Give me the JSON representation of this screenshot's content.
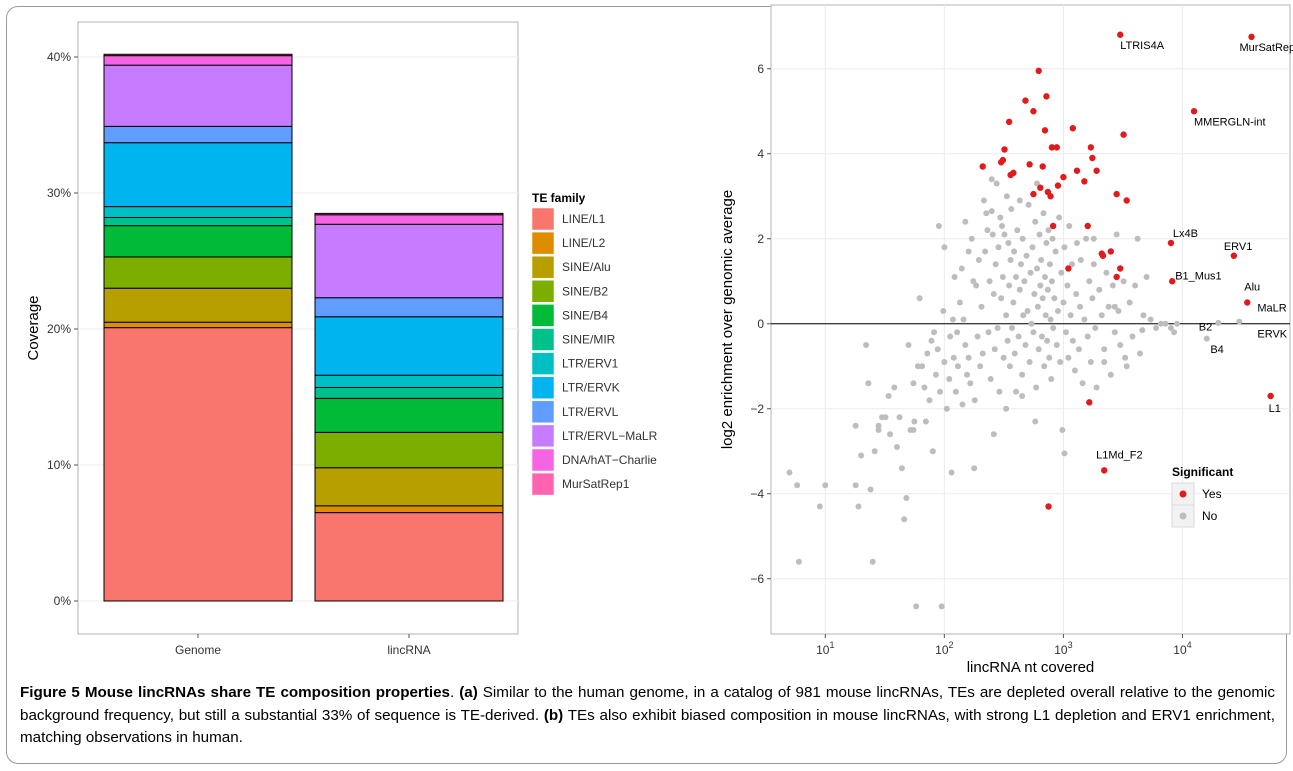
{
  "chart_data": [
    {
      "panel": "a",
      "type": "bar",
      "stacked": true,
      "ylabel": "Coverage",
      "yticks": [
        "0%",
        "10%",
        "20%",
        "30%",
        "40%"
      ],
      "ylim": [
        0,
        42
      ],
      "grid": true,
      "categories": [
        "Genome",
        "lincRNA"
      ],
      "legend_title": "TE family",
      "legend_position": "right",
      "series": [
        {
          "name": "LINE/L1",
          "color": "#F8766D",
          "values": [
            20.1,
            6.5
          ]
        },
        {
          "name": "LINE/L2",
          "color": "#DE8C00",
          "values": [
            0.4,
            0.5
          ]
        },
        {
          "name": "SINE/Alu",
          "color": "#B79F00",
          "values": [
            2.5,
            2.8
          ]
        },
        {
          "name": "SINE/B2",
          "color": "#7CAE00",
          "values": [
            2.3,
            2.6
          ]
        },
        {
          "name": "SINE/B4",
          "color": "#00BA38",
          "values": [
            2.3,
            2.5
          ]
        },
        {
          "name": "SINE/MIR",
          "color": "#00C08B",
          "values": [
            0.6,
            0.8
          ]
        },
        {
          "name": "LTR/ERV1",
          "color": "#00BFC4",
          "values": [
            0.8,
            0.9
          ]
        },
        {
          "name": "LTR/ERVK",
          "color": "#00B4F0",
          "values": [
            4.7,
            4.3
          ]
        },
        {
          "name": "LTR/ERVL",
          "color": "#619CFF",
          "values": [
            1.2,
            1.4
          ]
        },
        {
          "name": "LTR/ERVL−MaLR",
          "color": "#C77CFF",
          "values": [
            4.5,
            5.4
          ]
        },
        {
          "name": "DNA/hAT−Charlie",
          "color": "#F564E3",
          "values": [
            0.7,
            0.7
          ]
        },
        {
          "name": "MurSatRep1",
          "color": "#FF64B0",
          "values": [
            0.1,
            0.1
          ]
        }
      ]
    },
    {
      "panel": "b",
      "type": "scatter",
      "xlabel": "lincRNA nt covered",
      "ylabel": "log2 enrichment over genomic average",
      "xscale": "log10",
      "xlim": [
        3.5,
        80000
      ],
      "ylim": [
        -7.3,
        7.5
      ],
      "xticks": [
        {
          "base": "10",
          "exp": "1"
        },
        {
          "base": "10",
          "exp": "2"
        },
        {
          "base": "10",
          "exp": "3"
        },
        {
          "base": "10",
          "exp": "4"
        }
      ],
      "yticks": [
        "−6",
        "−4",
        "−2",
        "0",
        "2",
        "4",
        "6"
      ],
      "hline": 0,
      "grid": true,
      "legend_title": "Significant",
      "legend_position": "bottom-right",
      "legend": [
        {
          "label": "Yes",
          "color": "#e31a1c"
        },
        {
          "label": "No",
          "color": "#bdbdbd"
        }
      ],
      "significant": [
        [
          3000,
          6.8
        ],
        [
          38000,
          6.75
        ],
        [
          12500,
          5.0
        ],
        [
          8000,
          1.9
        ],
        [
          27000,
          1.6
        ],
        [
          8200,
          1.0
        ],
        [
          35000,
          0.5
        ],
        [
          55000,
          -1.7
        ],
        [
          2200,
          -3.45
        ],
        [
          750,
          -4.3
        ],
        [
          1650,
          -1.85
        ],
        [
          210,
          3.7
        ],
        [
          300,
          3.8
        ],
        [
          310,
          3.85
        ],
        [
          320,
          4.1
        ],
        [
          360,
          3.5
        ],
        [
          380,
          3.55
        ],
        [
          350,
          4.75
        ],
        [
          480,
          5.25
        ],
        [
          560,
          5.0
        ],
        [
          520,
          3.75
        ],
        [
          620,
          5.95
        ],
        [
          640,
          3.2
        ],
        [
          670,
          3.7
        ],
        [
          700,
          4.55
        ],
        [
          720,
          5.35
        ],
        [
          740,
          3.1
        ],
        [
          780,
          3.0
        ],
        [
          800,
          4.15
        ],
        [
          880,
          4.15
        ],
        [
          900,
          3.25
        ],
        [
          1000,
          3.45
        ],
        [
          1200,
          4.6
        ],
        [
          1300,
          3.6
        ],
        [
          1500,
          3.35
        ],
        [
          1700,
          4.15
        ],
        [
          1750,
          3.9
        ],
        [
          1900,
          3.6
        ],
        [
          2100,
          1.65
        ],
        [
          2150,
          1.6
        ],
        [
          2500,
          1.7
        ],
        [
          2800,
          3.05
        ],
        [
          3000,
          1.3
        ],
        [
          3200,
          4.45
        ],
        [
          3400,
          2.9
        ],
        [
          2800,
          1.1
        ],
        [
          1600,
          2.3
        ],
        [
          820,
          2.3
        ],
        [
          1100,
          1.3
        ],
        [
          560,
          3.05
        ]
      ],
      "nonsignificant": [
        [
          5,
          -3.5
        ],
        [
          5.8,
          -3.8
        ],
        [
          6,
          -5.6
        ],
        [
          9,
          -4.3
        ],
        [
          10,
          -3.8
        ],
        [
          18,
          -2.4
        ],
        [
          18,
          -3.8
        ],
        [
          19,
          -4.3
        ],
        [
          20,
          -3.1
        ],
        [
          22,
          -0.5
        ],
        [
          23,
          -1.4
        ],
        [
          24,
          -3.9
        ],
        [
          25,
          -5.6
        ],
        [
          26,
          -3.0
        ],
        [
          28,
          -2.5
        ],
        [
          28,
          -2.4
        ],
        [
          30,
          -2.2
        ],
        [
          32,
          -2.2
        ],
        [
          34,
          -1.7
        ],
        [
          35,
          -2.6
        ],
        [
          38,
          -1.5
        ],
        [
          40,
          -2.9
        ],
        [
          42,
          -2.2
        ],
        [
          44,
          -3.4
        ],
        [
          46,
          -4.6
        ],
        [
          48,
          -4.1
        ],
        [
          50,
          -0.5
        ],
        [
          52,
          -2.5
        ],
        [
          55,
          -1.4
        ],
        [
          55,
          -2.5
        ],
        [
          56,
          -2.3
        ],
        [
          58,
          -6.65
        ],
        [
          60,
          -1.0
        ],
        [
          62,
          0.6
        ],
        [
          65,
          -1.0
        ],
        [
          68,
          -1.5
        ],
        [
          70,
          -2.3
        ],
        [
          72,
          -0.7
        ],
        [
          75,
          -1.8
        ],
        [
          78,
          -0.4
        ],
        [
          80,
          -3.0
        ],
        [
          82,
          -0.2
        ],
        [
          85,
          -1.2
        ],
        [
          88,
          -0.6
        ],
        [
          90,
          2.3
        ],
        [
          92,
          -1.6
        ],
        [
          95,
          -6.65
        ],
        [
          98,
          0.3
        ],
        [
          100,
          -0.9
        ],
        [
          100,
          1.8
        ],
        [
          105,
          -2.0
        ],
        [
          110,
          -1.3
        ],
        [
          112,
          -0.3
        ],
        [
          115,
          -3.5
        ],
        [
          118,
          0.1
        ],
        [
          120,
          -0.8
        ],
        [
          122,
          1.1
        ],
        [
          125,
          -1.6
        ],
        [
          128,
          -0.2
        ],
        [
          130,
          -1.0
        ],
        [
          135,
          0.5
        ],
        [
          140,
          1.3
        ],
        [
          142,
          -1.9
        ],
        [
          145,
          0.1
        ],
        [
          150,
          -0.5
        ],
        [
          150,
          2.4
        ],
        [
          155,
          -1.2
        ],
        [
          160,
          -0.8
        ],
        [
          160,
          1.7
        ],
        [
          165,
          -1.4
        ],
        [
          170,
          2.0
        ],
        [
          175,
          1.0
        ],
        [
          178,
          -3.4
        ],
        [
          180,
          -1.8
        ],
        [
          185,
          0.9
        ],
        [
          190,
          -0.3
        ],
        [
          195,
          1.5
        ],
        [
          200,
          -1.0
        ],
        [
          205,
          0.4
        ],
        [
          210,
          -0.7
        ],
        [
          215,
          2.9
        ],
        [
          220,
          1.7
        ],
        [
          225,
          2.6
        ],
        [
          230,
          2.2
        ],
        [
          235,
          -0.2
        ],
        [
          240,
          1.0
        ],
        [
          245,
          -1.3
        ],
        [
          250,
          3.4
        ],
        [
          255,
          2.1
        ],
        [
          260,
          0.7
        ],
        [
          265,
          -0.6
        ],
        [
          270,
          1.4
        ],
        [
          275,
          3.3
        ],
        [
          280,
          -0.1
        ],
        [
          285,
          1.8
        ],
        [
          290,
          -1.6
        ],
        [
          295,
          2.5
        ],
        [
          300,
          0.6
        ],
        [
          305,
          2.3
        ],
        [
          310,
          1.1
        ],
        [
          315,
          -0.8
        ],
        [
          320,
          2.1
        ],
        [
          330,
          0.2
        ],
        [
          335,
          3.0
        ],
        [
          340,
          -0.4
        ],
        [
          345,
          1.9
        ],
        [
          350,
          0.9
        ],
        [
          355,
          -1.0
        ],
        [
          360,
          1.5
        ],
        [
          365,
          2.7
        ],
        [
          370,
          -0.1
        ],
        [
          380,
          0.5
        ],
        [
          385,
          1.7
        ],
        [
          390,
          -0.7
        ],
        [
          400,
          1.1
        ],
        [
          410,
          2.2
        ],
        [
          420,
          -0.3
        ],
        [
          430,
          0.8
        ],
        [
          440,
          1.4
        ],
        [
          450,
          -1.2
        ],
        [
          455,
          2.0
        ],
        [
          460,
          0.2
        ],
        [
          470,
          1.0
        ],
        [
          480,
          -0.5
        ],
        [
          490,
          1.6
        ],
        [
          500,
          0.3
        ],
        [
          510,
          2.8
        ],
        [
          520,
          -0.9
        ],
        [
          530,
          1.2
        ],
        [
          540,
          0.0
        ],
        [
          550,
          1.8
        ],
        [
          560,
          -0.2
        ],
        [
          570,
          0.7
        ],
        [
          580,
          2.4
        ],
        [
          590,
          -1.5
        ],
        [
          600,
          1.3
        ],
        [
          610,
          0.4
        ],
        [
          620,
          -0.6
        ],
        [
          630,
          2.1
        ],
        [
          640,
          0.9
        ],
        [
          650,
          1.5
        ],
        [
          660,
          -0.3
        ],
        [
          670,
          0.6
        ],
        [
          680,
          2.6
        ],
        [
          690,
          -1.0
        ],
        [
          700,
          1.1
        ],
        [
          710,
          0.2
        ],
        [
          720,
          1.9
        ],
        [
          730,
          -0.4
        ],
        [
          740,
          0.8
        ],
        [
          750,
          2.2
        ],
        [
          760,
          -0.8
        ],
        [
          770,
          1.4
        ],
        [
          780,
          0.1
        ],
        [
          790,
          -1.3
        ],
        [
          800,
          1.0
        ],
        [
          810,
          2.0
        ],
        [
          820,
          -0.1
        ],
        [
          840,
          0.6
        ],
        [
          860,
          1.7
        ],
        [
          880,
          -0.5
        ],
        [
          900,
          0.3
        ],
        [
          920,
          2.5
        ],
        [
          940,
          -0.9
        ],
        [
          960,
          1.2
        ],
        [
          980,
          -2.5
        ],
        [
          1000,
          0.5
        ],
        [
          1020,
          1.8
        ],
        [
          1050,
          -0.2
        ],
        [
          1080,
          0.9
        ],
        [
          1100,
          -0.8
        ],
        [
          1120,
          2.3
        ],
        [
          1150,
          0.2
        ],
        [
          1180,
          1.4
        ],
        [
          1200,
          -0.4
        ],
        [
          1250,
          -1.1
        ],
        [
          1280,
          0.7
        ],
        [
          1300,
          1.9
        ],
        [
          1350,
          -0.6
        ],
        [
          1380,
          0.4
        ],
        [
          1400,
          1.5
        ],
        [
          1450,
          -1.4
        ],
        [
          1500,
          0.1
        ],
        [
          1550,
          2.0
        ],
        [
          1600,
          -0.3
        ],
        [
          1650,
          1.0
        ],
        [
          1700,
          -0.9
        ],
        [
          1750,
          0.6
        ],
        [
          1800,
          1.4
        ],
        [
          1850,
          -0.1
        ],
        [
          1900,
          -1.5
        ],
        [
          2000,
          0.8
        ],
        [
          2100,
          0.2
        ],
        [
          2200,
          -0.6
        ],
        [
          2300,
          1.2
        ],
        [
          2400,
          0.4
        ],
        [
          2500,
          -1.2
        ],
        [
          2600,
          0.9
        ],
        [
          2700,
          -0.2
        ],
        [
          2800,
          2.1
        ],
        [
          2900,
          0.3
        ],
        [
          3000,
          -0.5
        ],
        [
          3200,
          1.0
        ],
        [
          3400,
          -1.0
        ],
        [
          3600,
          0.5
        ],
        [
          3800,
          -0.3
        ],
        [
          4000,
          0.9
        ],
        [
          4200,
          2.0
        ],
        [
          4400,
          -0.7
        ],
        [
          4700,
          0.2
        ],
        [
          5000,
          1.1
        ],
        [
          5400,
          0.1
        ],
        [
          6000,
          -0.1
        ],
        [
          6600,
          0.0
        ],
        [
          7200,
          0.0
        ],
        [
          8000,
          -0.1
        ],
        [
          8500,
          -0.2
        ],
        [
          9000,
          0.0
        ],
        [
          16000,
          -0.35
        ],
        [
          20000,
          0.02
        ],
        [
          30000,
          0.05
        ],
        [
          4600,
          -0.15
        ],
        [
          1020,
          -3.05
        ],
        [
          580,
          -2.3
        ],
        [
          450,
          -1.7
        ],
        [
          260,
          -2.6
        ],
        [
          330,
          -2.0
        ],
        [
          400,
          -1.6
        ],
        [
          2200,
          -0.9
        ],
        [
          1800,
          2.0
        ],
        [
          2700,
          0.4
        ],
        [
          3300,
          -0.8
        ],
        [
          600,
          3.3
        ],
        [
          430,
          2.9
        ],
        [
          250,
          2.65
        ]
      ],
      "point_labels": [
        {
          "text": "LTRIS4A",
          "x": 3000,
          "y": 6.8
        },
        {
          "text": "MurSatRep1",
          "x": 38000,
          "y": 6.75
        },
        {
          "text": "MMERGLN-int",
          "x": 12500,
          "y": 5.0
        },
        {
          "text": "Lx4B",
          "x": 8000,
          "y": 1.9
        },
        {
          "text": "ERV1",
          "x": 27000,
          "y": 1.6
        },
        {
          "text": "B1_Mus1",
          "x": 8200,
          "y": 1.0
        },
        {
          "text": "Alu",
          "x": 35000,
          "y": 0.5
        },
        {
          "text": "MaLR",
          "x": 46000,
          "y": 0.05
        },
        {
          "text": "B2",
          "x": 16000,
          "y": -0.35
        },
        {
          "text": "B4",
          "x": 20000,
          "y": 0.02
        },
        {
          "text": "ERVK",
          "x": 46000,
          "y": 0.05
        },
        {
          "text": "L1",
          "x": 55000,
          "y": -1.7
        },
        {
          "text": "L1Md_F2",
          "x": 2200,
          "y": -3.45
        }
      ]
    }
  ],
  "caption": {
    "lead": "Figure 5 Mouse lincRNAs share TE composition properties",
    "dot": ". ",
    "a_tag": "(a)",
    "a_text": " Similar to the human genome, in a catalog of 981 mouse lincRNAs, TEs are depleted overall relative to the genomic background frequency, but still a substantial 33% of sequence is TE-derived. ",
    "b_tag": "(b)",
    "b_text": " TEs also exhibit biased composition in mouse lincRNAs, with strong L1 depletion and ERV1 enrichment, matching observations in human."
  }
}
